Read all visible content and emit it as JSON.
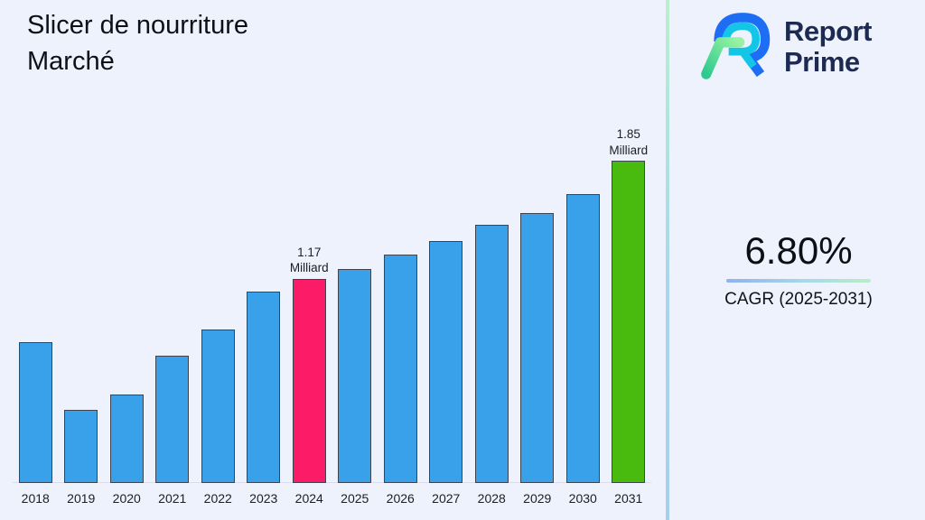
{
  "page": {
    "background": "#edf2fc"
  },
  "header": {
    "title_line1": "Slicer de nourriture",
    "title_line2": "Marché"
  },
  "brand": {
    "name_line1": "Report",
    "name_line2": "Prime",
    "text_color": "#1d2b52",
    "logo_colors": {
      "blue": "#1e6ef5",
      "cyan": "#13c6e8",
      "green_light": "#97f3a1",
      "green_dark": "#2fc98e"
    }
  },
  "cagr": {
    "value": "6.80%",
    "label": "CAGR (2025-2031)"
  },
  "chart_data": {
    "type": "bar",
    "title": "Slicer de nourriture Marché",
    "unit": "Milliard",
    "categories": [
      "2018",
      "2019",
      "2020",
      "2021",
      "2022",
      "2023",
      "2024",
      "2025",
      "2026",
      "2027",
      "2028",
      "2029",
      "2030",
      "2031"
    ],
    "values": [
      0.81,
      0.42,
      0.51,
      0.73,
      0.88,
      1.1,
      1.17,
      1.23,
      1.31,
      1.39,
      1.48,
      1.55,
      1.66,
      1.85
    ],
    "ylim": [
      0,
      2.05
    ],
    "grid": false,
    "legend": false,
    "annotations": [
      {
        "category": "2024",
        "line1": "1.17",
        "line2": "Milliard"
      },
      {
        "category": "2031",
        "line1": "1.85",
        "line2": "Milliard"
      }
    ],
    "colors": {
      "default": "#38a1e9",
      "2024": "#fb1b66",
      "2031": "#48bb0e",
      "bar_border": "#3d4450"
    }
  }
}
